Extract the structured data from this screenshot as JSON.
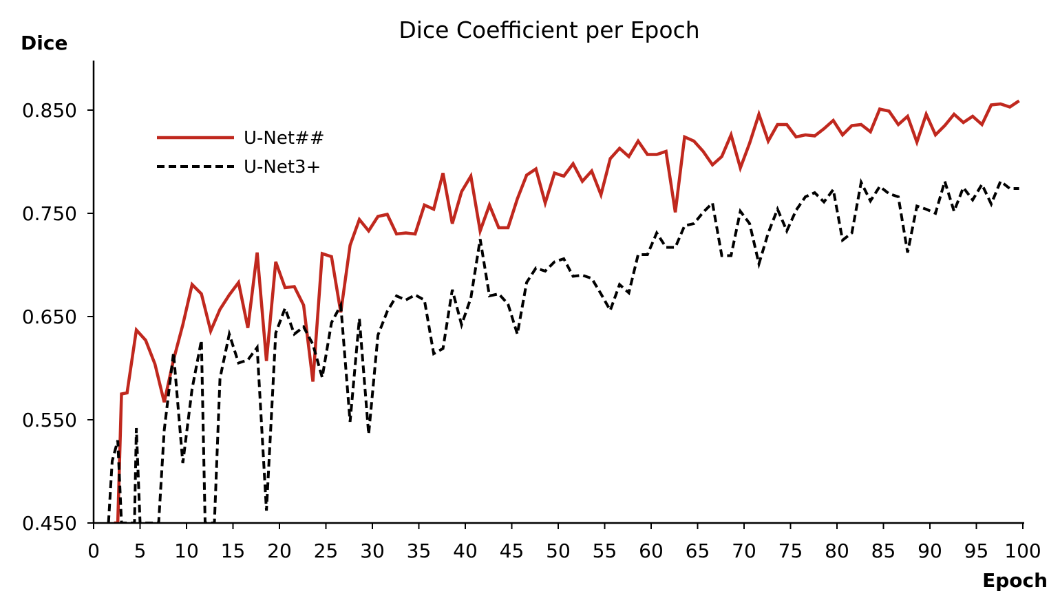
{
  "chart_data": {
    "type": "line",
    "title": "Dice Coefficient per Epoch",
    "xlabel": "Epoch",
    "ylabel": "Dice",
    "xlim": [
      0,
      100
    ],
    "ylim": [
      0.45,
      0.9
    ],
    "x_ticks": [
      0,
      5,
      10,
      15,
      20,
      25,
      30,
      35,
      40,
      45,
      50,
      55,
      60,
      65,
      70,
      75,
      80,
      85,
      90,
      95,
      100
    ],
    "x_tick_labels": [
      "0",
      "5",
      "10",
      "15",
      "20",
      "25",
      "30",
      "35",
      "40",
      "45",
      "50",
      "55",
      "60",
      "65",
      "70",
      "75",
      "80",
      "85",
      "90",
      "95",
      "100"
    ],
    "y_ticks": [
      0.45,
      0.55,
      0.65,
      0.75,
      0.85
    ],
    "y_tick_labels": [
      "0.450",
      "0.550",
      "0.650",
      "0.750",
      "0.850"
    ],
    "grid": false,
    "legend_position": "top-left",
    "series": [
      {
        "name": "U-Net##",
        "color": "#c0281e",
        "style": "solid",
        "x": [
          2.2,
          2.6,
          3.0,
          3.6,
          4.6,
          5.6,
          6.6,
          7.6,
          8.6,
          9.6,
          10.6,
          11.6,
          12.6,
          13.6,
          14.6,
          15.6,
          16.6,
          17.6,
          18.6,
          19.6,
          20.6,
          21.6,
          22.6,
          23.6,
          24.6,
          25.6,
          26.6,
          27.6,
          28.6,
          29.6,
          30.6,
          31.6,
          32.6,
          33.6,
          34.6,
          35.6,
          36.6,
          37.6,
          38.6,
          39.6,
          40.6,
          41.6,
          42.6,
          43.6,
          44.6,
          45.6,
          46.6,
          47.6,
          48.6,
          49.6,
          50.6,
          51.6,
          52.6,
          53.6,
          54.6,
          55.6,
          56.6,
          57.6,
          58.6,
          59.6,
          60.6,
          61.6,
          62.6,
          63.6,
          64.6,
          65.6,
          66.6,
          67.6,
          68.6,
          69.6,
          70.6,
          71.6,
          72.6,
          73.6,
          74.6,
          75.6,
          76.6,
          77.6,
          78.6,
          79.6,
          80.6,
          81.6,
          82.6,
          83.6,
          84.6,
          85.6,
          86.6,
          87.6,
          88.6,
          89.6,
          90.6,
          91.6,
          92.6,
          93.6,
          94.6,
          95.6,
          96.6,
          97.6,
          98.6,
          99.6
        ],
        "y": [
          0.45,
          0.45,
          0.575,
          0.576,
          0.637,
          0.627,
          0.604,
          0.567,
          0.608,
          0.642,
          0.681,
          0.672,
          0.636,
          0.657,
          0.671,
          0.683,
          0.639,
          0.712,
          0.607,
          0.703,
          0.678,
          0.679,
          0.661,
          0.587,
          0.711,
          0.708,
          0.654,
          0.719,
          0.744,
          0.733,
          0.747,
          0.749,
          0.73,
          0.731,
          0.73,
          0.758,
          0.754,
          0.789,
          0.74,
          0.771,
          0.786,
          0.733,
          0.758,
          0.736,
          0.736,
          0.764,
          0.787,
          0.793,
          0.76,
          0.789,
          0.786,
          0.798,
          0.781,
          0.791,
          0.768,
          0.803,
          0.813,
          0.805,
          0.82,
          0.807,
          0.807,
          0.81,
          0.751,
          0.824,
          0.82,
          0.81,
          0.797,
          0.805,
          0.826,
          0.794,
          0.818,
          0.846,
          0.82,
          0.836,
          0.836,
          0.824,
          0.826,
          0.825,
          0.832,
          0.84,
          0.826,
          0.835,
          0.836,
          0.829,
          0.851,
          0.849,
          0.836,
          0.844,
          0.819,
          0.846,
          0.826,
          0.835,
          0.846,
          0.838,
          0.844,
          0.836,
          0.855,
          0.856,
          0.853,
          0.859
        ]
      },
      {
        "name": "U-Net3+",
        "color": "#000000",
        "style": "dashed",
        "x": [
          1.6,
          2.0,
          2.6,
          3.0,
          3.6,
          4.4,
          4.6,
          5.0,
          5.6,
          6.6,
          7.0,
          7.6,
          8.6,
          9.6,
          10.6,
          11.6,
          12.0,
          12.6,
          13.0,
          13.6,
          14.6,
          15.6,
          16.6,
          17.6,
          18.6,
          19.6,
          20.6,
          21.6,
          22.6,
          23.6,
          24.6,
          25.6,
          26.6,
          27.6,
          28.6,
          29.6,
          30.6,
          31.6,
          32.6,
          33.6,
          34.6,
          35.6,
          36.6,
          37.6,
          38.6,
          39.6,
          40.6,
          41.6,
          42.6,
          43.6,
          44.6,
          45.6,
          46.6,
          47.6,
          48.6,
          49.6,
          50.6,
          51.6,
          52.6,
          53.6,
          54.6,
          55.6,
          56.6,
          57.6,
          58.6,
          59.6,
          60.6,
          61.6,
          62.6,
          63.6,
          64.6,
          65.6,
          66.6,
          67.6,
          68.6,
          69.6,
          70.6,
          71.6,
          72.6,
          73.6,
          74.6,
          75.6,
          76.6,
          77.6,
          78.6,
          79.6,
          80.6,
          81.6,
          82.6,
          83.6,
          84.6,
          85.6,
          86.6,
          87.6,
          88.6,
          89.6,
          90.6,
          91.6,
          92.6,
          93.6,
          94.6,
          95.6,
          96.6,
          97.6,
          98.6,
          99.6
        ],
        "y": [
          0.45,
          0.51,
          0.53,
          0.45,
          0.45,
          0.45,
          0.542,
          0.45,
          0.45,
          0.45,
          0.45,
          0.54,
          0.615,
          0.508,
          0.58,
          0.627,
          0.45,
          0.45,
          0.45,
          0.59,
          0.633,
          0.605,
          0.608,
          0.62,
          0.462,
          0.634,
          0.658,
          0.633,
          0.64,
          0.623,
          0.591,
          0.644,
          0.661,
          0.548,
          0.648,
          0.536,
          0.632,
          0.655,
          0.67,
          0.666,
          0.671,
          0.666,
          0.614,
          0.619,
          0.676,
          0.642,
          0.668,
          0.725,
          0.67,
          0.672,
          0.662,
          0.633,
          0.683,
          0.697,
          0.694,
          0.703,
          0.706,
          0.689,
          0.69,
          0.687,
          0.672,
          0.656,
          0.681,
          0.673,
          0.71,
          0.71,
          0.731,
          0.717,
          0.717,
          0.738,
          0.74,
          0.751,
          0.76,
          0.709,
          0.709,
          0.752,
          0.74,
          0.701,
          0.731,
          0.754,
          0.733,
          0.753,
          0.766,
          0.77,
          0.761,
          0.773,
          0.724,
          0.731,
          0.78,
          0.762,
          0.776,
          0.769,
          0.766,
          0.712,
          0.757,
          0.754,
          0.75,
          0.781,
          0.752,
          0.775,
          0.763,
          0.778,
          0.759,
          0.781,
          0.774,
          0.774
        ]
      }
    ]
  }
}
